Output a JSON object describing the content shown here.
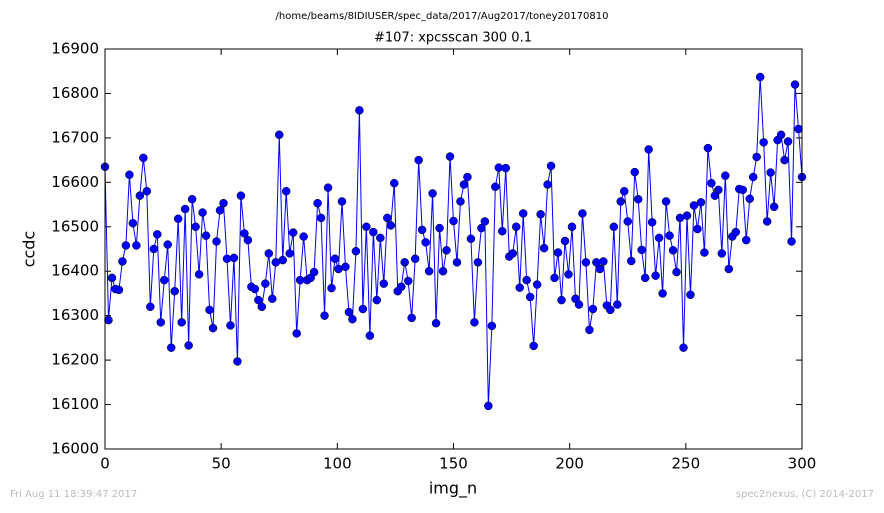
{
  "chart_data": {
    "type": "line",
    "title": "/home/beams/8IDIUSER/spec_data/2017/Aug2017/toney20170810",
    "subtitle": "#107: xpcsscan 300 0.1",
    "xlabel": "img_n",
    "ylabel": "ccdc",
    "footer_left": "Fri Aug 11 18:39:47 2017",
    "footer_right": "spec2nexus, (C) 2014-2017",
    "xlim": [
      0,
      300
    ],
    "xticks": [
      0,
      50,
      100,
      150,
      200,
      250,
      300
    ],
    "ylim": [
      16000,
      16900
    ],
    "yticks": [
      16000,
      16100,
      16200,
      16300,
      16400,
      16500,
      16600,
      16700,
      16800,
      16900
    ],
    "color": "#0000ff",
    "x": [
      0,
      1.5,
      3,
      4.5,
      6,
      7.5,
      9,
      10.5,
      12,
      13.5,
      15,
      16.5,
      18,
      19.5,
      21,
      22.5,
      24,
      25.5,
      27,
      28.5,
      30,
      31.5,
      33,
      34.5,
      36,
      37.5,
      39,
      40.5,
      42,
      43.5,
      45,
      46.5,
      48,
      49.5,
      51,
      52.5,
      54,
      55.5,
      57,
      58.5,
      60,
      61.5,
      63,
      64.5,
      66,
      67.5,
      69,
      70.5,
      72,
      73.5,
      75,
      76.5,
      78,
      79.5,
      81,
      82.5,
      84,
      85.5,
      87,
      88.5,
      90,
      91.5,
      93,
      94.5,
      96,
      97.5,
      99,
      100.5,
      102,
      103.5,
      105,
      106.5,
      108,
      109.5,
      111,
      112.5,
      114,
      115.5,
      117,
      118.5,
      120,
      121.5,
      123,
      124.5,
      126,
      127.5,
      129,
      130.5,
      132,
      133.5,
      135,
      136.5,
      138,
      139.5,
      141,
      142.5,
      144,
      145.5,
      147,
      148.5,
      150,
      151.5,
      153,
      154.5,
      156,
      157.5,
      159,
      160.5,
      162,
      163.5,
      165,
      166.5,
      168,
      169.5,
      171,
      172.5,
      174,
      175.5,
      177,
      178.5,
      180,
      181.5,
      183,
      184.5,
      186,
      187.5,
      189,
      190.5,
      192,
      193.5,
      195,
      196.5,
      198,
      199.5,
      201,
      202.5,
      204,
      205.5,
      207,
      208.5,
      210,
      211.5,
      213,
      214.5,
      216,
      217.5,
      219,
      220.5,
      222,
      223.5,
      225,
      226.5,
      228,
      229.5,
      231,
      232.5,
      234,
      235.5,
      237,
      238.5,
      240,
      241.5,
      243,
      244.5,
      246,
      247.5,
      249,
      250.5,
      252,
      253.5,
      255,
      256.5,
      258,
      259.5,
      261,
      262.5,
      264,
      265.5,
      267,
      268.5,
      270,
      271.5,
      273,
      274.5,
      276,
      277.5,
      279,
      280.5,
      282,
      283.5,
      285,
      286.5,
      288,
      289.5,
      291,
      292.5,
      294,
      295.5,
      297,
      298.5,
      300
    ],
    "values": [
      16635,
      16290,
      16385,
      16360,
      16358,
      16422,
      16458,
      16617,
      16508,
      16458,
      16570,
      16655,
      16580,
      16320,
      16450,
      16483,
      16285,
      16380,
      16460,
      16228,
      16355,
      16518,
      16285,
      16540,
      16233,
      16562,
      16500,
      16393,
      16532,
      16480,
      16313,
      16272,
      16467,
      16537,
      16553,
      16428,
      16278,
      16430,
      16197,
      16570,
      16485,
      16470,
      16365,
      16360,
      16335,
      16320,
      16372,
      16440,
      16338,
      16420,
      16707,
      16425,
      16580,
      16440,
      16487,
      16260,
      16380,
      16478,
      16380,
      16385,
      16398,
      16553,
      16520,
      16300,
      16588,
      16362,
      16428,
      16405,
      16557,
      16410,
      16308,
      16292,
      16445,
      16762,
      16315,
      16500,
      16255,
      16488,
      16335,
      16475,
      16372,
      16520,
      16503,
      16598,
      16355,
      16365,
      16420,
      16378,
      16295,
      16428,
      16650,
      16493,
      16465,
      16400,
      16575,
      16283,
      16497,
      16400,
      16447,
      16658,
      16513,
      16420,
      16557,
      16595,
      16612,
      16473,
      16285,
      16420,
      16497,
      16512,
      16097,
      16277,
      16590,
      16633,
      16490,
      16632,
      16433,
      16440,
      16500,
      16363,
      16530,
      16380,
      16342,
      16232,
      16370,
      16528,
      16452,
      16595,
      16637,
      16385,
      16442,
      16335,
      16468,
      16393,
      16500,
      16338,
      16325,
      16530,
      16420,
      16268,
      16315,
      16420,
      16405,
      16422,
      16323,
      16313,
      16500,
      16325,
      16557,
      16580,
      16512,
      16423,
      16623,
      16562,
      16448,
      16385,
      16674,
      16510,
      16390,
      16475,
      16350,
      16557,
      16480,
      16447,
      16398,
      16520,
      16228,
      16525,
      16347,
      16548,
      16495,
      16555,
      16442,
      16677,
      16598,
      16570,
      16583,
      16440,
      16615,
      16405,
      16478,
      16488,
      16585,
      16583,
      16470,
      16563,
      16612,
      16657,
      16837,
      16690,
      16512,
      16622,
      16545,
      16695,
      16707,
      16650,
      16692,
      16467,
      16820,
      16720,
      16612
    ]
  }
}
